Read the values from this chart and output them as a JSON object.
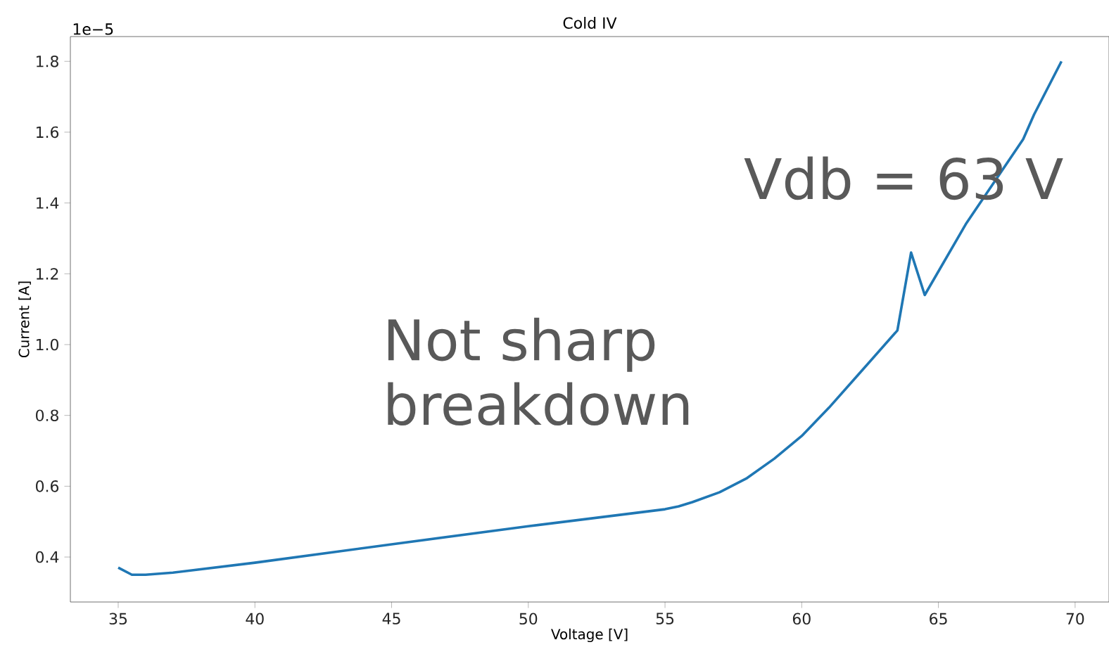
{
  "chart_data": {
    "type": "line",
    "title": "Cold IV",
    "xlabel": "Voltage [V]",
    "ylabel": "Current [A]",
    "annotations": [
      "1e−5",
      "Not sharp breakdown",
      "Vdb = 63 V"
    ],
    "x": [
      35,
      35.5,
      36,
      37,
      40,
      45,
      50,
      55,
      55.5,
      56,
      57,
      58,
      59,
      60,
      61,
      62,
      63.5,
      64,
      64.5,
      66,
      68.1,
      68.5,
      69.5
    ],
    "series": [
      {
        "color": "#1f77b4",
        "values": [
          0.37,
          0.35,
          0.35,
          0.356,
          0.384,
          0.436,
          0.487,
          0.535,
          0.543,
          0.555,
          0.583,
          0.623,
          0.678,
          0.742,
          0.822,
          0.909,
          1.04,
          1.26,
          1.14,
          1.34,
          1.58,
          1.65,
          1.8
        ]
      }
    ],
    "xlim": [
      33.25,
      71.24
    ],
    "ylim": [
      0.273,
      1.87
    ],
    "xticks": [
      35,
      40,
      45,
      50,
      55,
      60,
      65,
      70
    ],
    "yticks": [
      0.4,
      0.6,
      0.8,
      {
        "value": 1.0,
        "label": "1.0"
      },
      1.2,
      1.4,
      1.6,
      1.8
    ],
    "marker": "none",
    "line_style": "solid",
    "grid": false
  }
}
